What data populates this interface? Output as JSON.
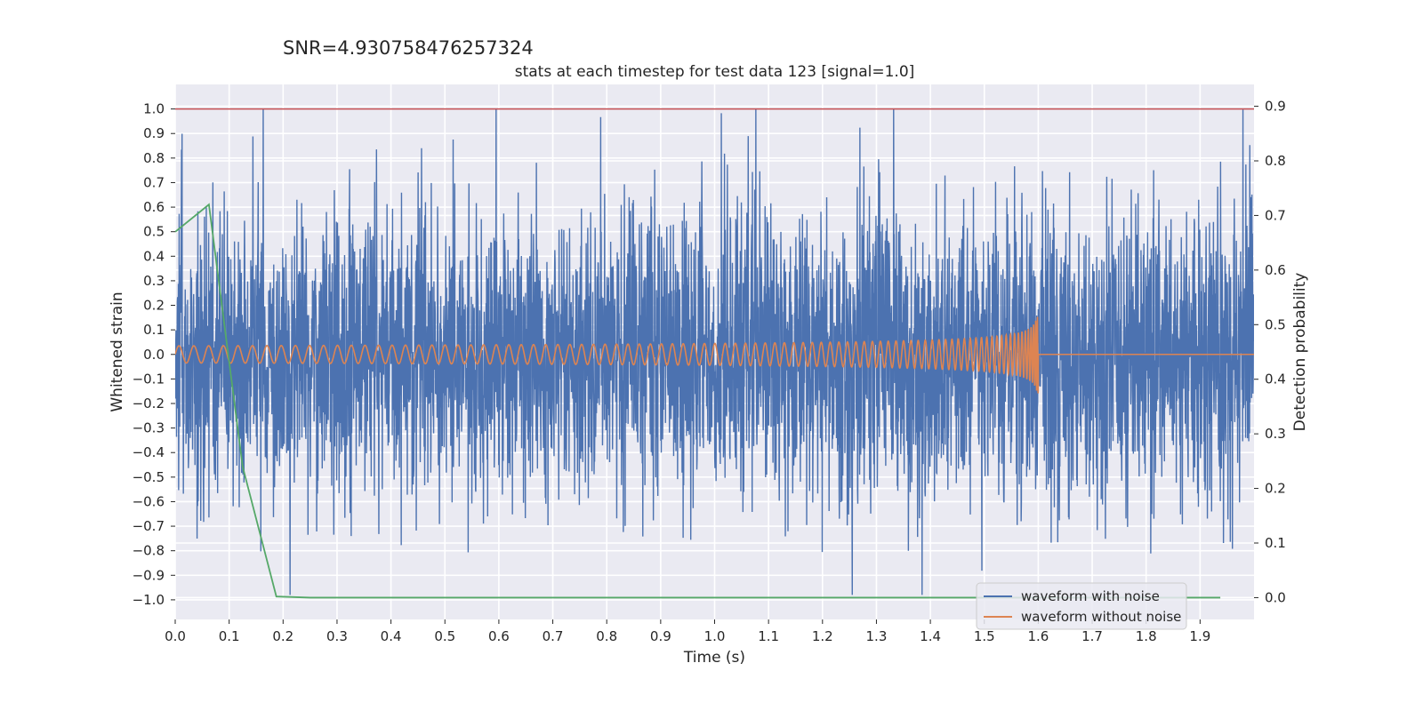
{
  "chart_data": {
    "type": "line",
    "suptitle": "SNR=4.930758476257324",
    "title": "stats at each timestep for test data 123 [signal=1.0]",
    "xlabel": "Time (s)",
    "ylabel": "Whitened strain",
    "y2label": "Detection probability",
    "xlim": [
      0.0,
      2.0
    ],
    "ylim": [
      -1.08,
      1.1
    ],
    "y2lim": [
      -0.04,
      0.94
    ],
    "x_ticks": [
      "0.0",
      "0.1",
      "0.2",
      "0.3",
      "0.4",
      "0.5",
      "0.6",
      "0.7",
      "0.8",
      "0.9",
      "1.0",
      "1.1",
      "1.2",
      "1.3",
      "1.4",
      "1.5",
      "1.6",
      "1.7",
      "1.8",
      "1.9"
    ],
    "y_ticks": [
      "1.0",
      "0.9",
      "0.8",
      "0.7",
      "0.6",
      "0.5",
      "0.4",
      "0.3",
      "0.2",
      "0.1",
      "0.0",
      "−0.1",
      "−0.2",
      "−0.3",
      "−0.4",
      "−0.5",
      "−0.6",
      "−0.7",
      "−0.8",
      "−0.9",
      "−1.0"
    ],
    "y2_ticks": [
      "0.9",
      "0.8",
      "0.7",
      "0.6",
      "0.5",
      "0.4",
      "0.3",
      "0.2",
      "0.1",
      "0.0"
    ],
    "grid": true,
    "legend_position": "lower-right",
    "series": [
      {
        "name": "waveform with noise",
        "color": "#4c72b0",
        "axis": "left",
        "kind": "noise",
        "x_range": [
          0.0,
          2.0
        ],
        "amplitude_range": [
          -0.98,
          1.0
        ],
        "approx_std": 0.3
      },
      {
        "name": "waveform without noise",
        "color": "#dd8452",
        "axis": "left",
        "kind": "chirp",
        "x_range": [
          0.0,
          2.0
        ],
        "merger_time": 1.6,
        "start_amplitude": 0.035,
        "peak_amplitude": 0.17,
        "post_merger_value": 0.0
      },
      {
        "color": "#55a868",
        "axis": "right",
        "kind": "detection_probability",
        "x": [
          0.0,
          0.0625,
          0.125,
          0.1875,
          0.25,
          0.3125,
          0.375,
          0.4375,
          0.5,
          0.5625,
          0.625,
          0.6875,
          0.75,
          0.8125,
          0.875,
          0.9375,
          1.0,
          1.0625,
          1.125,
          1.1875,
          1.25,
          1.3125,
          1.375,
          1.4375,
          1.5,
          1.5625,
          1.625,
          1.6875,
          1.75,
          1.8125,
          1.875,
          1.9375
        ],
        "y": [
          0.67,
          0.72,
          0.24,
          0.002,
          0.0,
          0.0,
          0.0,
          0.0,
          0.0,
          0.0,
          0.0,
          0.0,
          0.0,
          0.0,
          0.0,
          0.0,
          0.0,
          0.0,
          0.0,
          0.0,
          0.0,
          0.0,
          0.0,
          0.0,
          0.0,
          0.0,
          0.0,
          0.0,
          0.0,
          0.0,
          0.0,
          0.0
        ]
      },
      {
        "color": "#c44e52",
        "axis": "left",
        "kind": "hline",
        "y": 1.0
      }
    ]
  }
}
